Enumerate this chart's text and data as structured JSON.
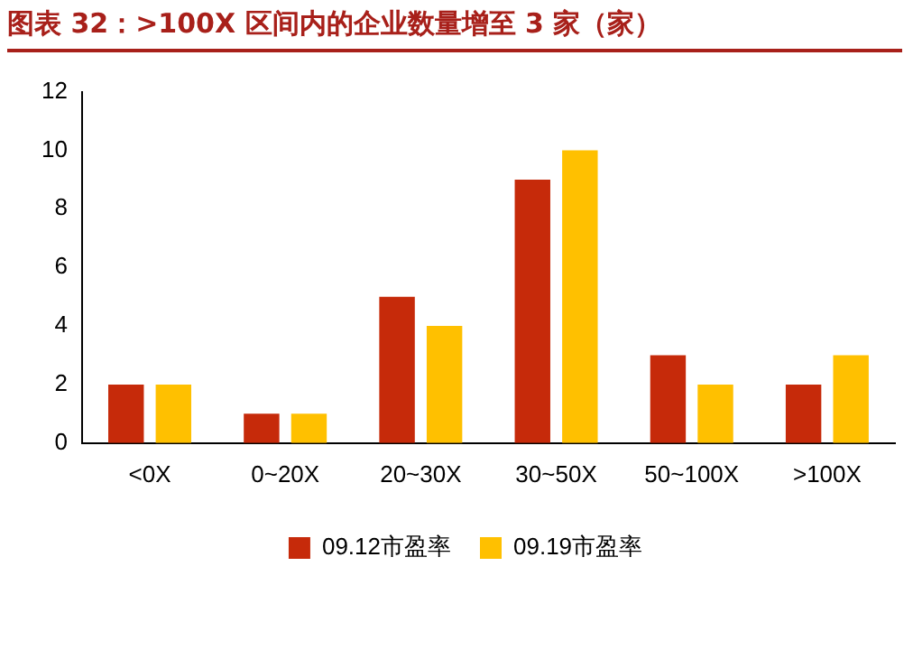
{
  "chart_data": {
    "type": "bar",
    "title": "图表 32：>100X 区间内的企业数量增至 3 家（家）",
    "categories": [
      "<0X",
      "0~20X",
      "20~30X",
      "30~50X",
      "50~100X",
      ">100X"
    ],
    "series": [
      {
        "name": "09.12市盈率",
        "color": "#c62a0a",
        "values": [
          2,
          1,
          5,
          9,
          3,
          2
        ]
      },
      {
        "name": "09.19市盈率",
        "color": "#ffc000",
        "values": [
          2,
          1,
          4,
          10,
          2,
          3
        ]
      }
    ],
    "ylim": [
      0,
      12
    ],
    "yticks": [
      0,
      2,
      4,
      6,
      8,
      10,
      12
    ],
    "grid": false,
    "legend": "bottom"
  }
}
